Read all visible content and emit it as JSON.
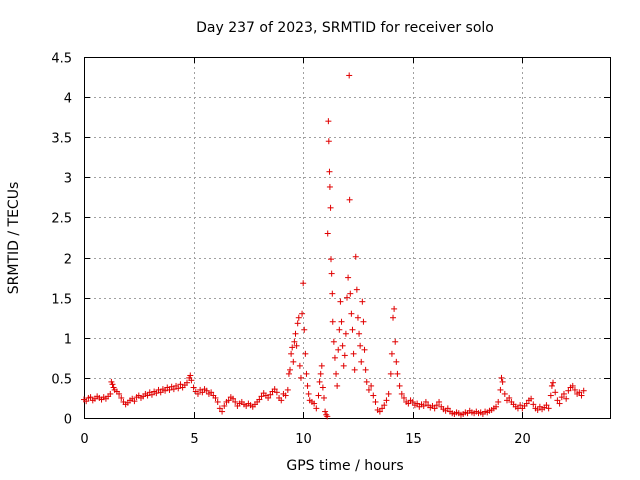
{
  "chart_data": {
    "type": "scatter",
    "title": "Day 237 of 2023, SRMTID for receiver solo",
    "xlabel": "GPS time / hours",
    "ylabel": "SRMTID / TECUs",
    "xlim": [
      0,
      24
    ],
    "ylim": [
      0,
      4.5
    ],
    "xticks": [
      0,
      5,
      10,
      15,
      20
    ],
    "xtick_labels": [
      "0",
      "5",
      "10",
      "15",
      "20"
    ],
    "yticks": [
      0,
      0.5,
      1,
      1.5,
      2,
      2.5,
      3,
      3.5,
      4,
      4.5
    ],
    "ytick_labels": [
      "0",
      "0.5",
      "1",
      "1.5",
      "2",
      "2.5",
      "3",
      "3.5",
      "4",
      "4.5"
    ],
    "grid": true,
    "marker": "+",
    "color": "#e00000",
    "series": [
      {
        "name": "SRMTID",
        "points": [
          [
            0.0,
            0.23
          ],
          [
            0.1,
            0.21
          ],
          [
            0.2,
            0.25
          ],
          [
            0.3,
            0.26
          ],
          [
            0.4,
            0.22
          ],
          [
            0.5,
            0.24
          ],
          [
            0.6,
            0.27
          ],
          [
            0.7,
            0.25
          ],
          [
            0.8,
            0.23
          ],
          [
            0.9,
            0.26
          ],
          [
            1.0,
            0.24
          ],
          [
            1.1,
            0.27
          ],
          [
            1.2,
            0.3
          ],
          [
            1.25,
            0.45
          ],
          [
            1.3,
            0.42
          ],
          [
            1.35,
            0.38
          ],
          [
            1.4,
            0.35
          ],
          [
            1.5,
            0.33
          ],
          [
            1.6,
            0.3
          ],
          [
            1.7,
            0.25
          ],
          [
            1.8,
            0.2
          ],
          [
            1.9,
            0.17
          ],
          [
            2.0,
            0.19
          ],
          [
            2.1,
            0.22
          ],
          [
            2.2,
            0.24
          ],
          [
            2.3,
            0.21
          ],
          [
            2.4,
            0.26
          ],
          [
            2.5,
            0.28
          ],
          [
            2.6,
            0.25
          ],
          [
            2.7,
            0.27
          ],
          [
            2.8,
            0.3
          ],
          [
            2.9,
            0.28
          ],
          [
            3.0,
            0.32
          ],
          [
            3.1,
            0.29
          ],
          [
            3.2,
            0.33
          ],
          [
            3.3,
            0.31
          ],
          [
            3.4,
            0.35
          ],
          [
            3.5,
            0.32
          ],
          [
            3.6,
            0.36
          ],
          [
            3.7,
            0.34
          ],
          [
            3.8,
            0.38
          ],
          [
            3.9,
            0.35
          ],
          [
            4.0,
            0.39
          ],
          [
            4.1,
            0.36
          ],
          [
            4.2,
            0.4
          ],
          [
            4.3,
            0.37
          ],
          [
            4.4,
            0.42
          ],
          [
            4.5,
            0.38
          ],
          [
            4.6,
            0.41
          ],
          [
            4.7,
            0.44
          ],
          [
            4.8,
            0.5
          ],
          [
            4.85,
            0.53
          ],
          [
            4.9,
            0.47
          ],
          [
            5.0,
            0.38
          ],
          [
            5.1,
            0.33
          ],
          [
            5.2,
            0.3
          ],
          [
            5.3,
            0.35
          ],
          [
            5.4,
            0.32
          ],
          [
            5.5,
            0.36
          ],
          [
            5.6,
            0.34
          ],
          [
            5.7,
            0.3
          ],
          [
            5.8,
            0.32
          ],
          [
            5.9,
            0.28
          ],
          [
            6.0,
            0.25
          ],
          [
            6.1,
            0.2
          ],
          [
            6.2,
            0.12
          ],
          [
            6.3,
            0.08
          ],
          [
            6.4,
            0.15
          ],
          [
            6.5,
            0.2
          ],
          [
            6.6,
            0.22
          ],
          [
            6.7,
            0.26
          ],
          [
            6.8,
            0.24
          ],
          [
            6.9,
            0.2
          ],
          [
            7.0,
            0.15
          ],
          [
            7.1,
            0.18
          ],
          [
            7.2,
            0.2
          ],
          [
            7.3,
            0.17
          ],
          [
            7.4,
            0.15
          ],
          [
            7.5,
            0.18
          ],
          [
            7.6,
            0.16
          ],
          [
            7.7,
            0.14
          ],
          [
            7.8,
            0.17
          ],
          [
            7.9,
            0.2
          ],
          [
            8.0,
            0.23
          ],
          [
            8.1,
            0.27
          ],
          [
            8.2,
            0.31
          ],
          [
            8.3,
            0.28
          ],
          [
            8.4,
            0.25
          ],
          [
            8.5,
            0.29
          ],
          [
            8.6,
            0.33
          ],
          [
            8.7,
            0.36
          ],
          [
            8.8,
            0.32
          ],
          [
            8.9,
            0.25
          ],
          [
            9.0,
            0.22
          ],
          [
            9.1,
            0.3
          ],
          [
            9.2,
            0.28
          ],
          [
            9.3,
            0.35
          ],
          [
            9.35,
            0.55
          ],
          [
            9.4,
            0.6
          ],
          [
            9.45,
            0.8
          ],
          [
            9.5,
            0.88
          ],
          [
            9.55,
            0.7
          ],
          [
            9.6,
            0.95
          ],
          [
            9.65,
            1.05
          ],
          [
            9.7,
            0.9
          ],
          [
            9.75,
            1.18
          ],
          [
            9.8,
            1.25
          ],
          [
            9.85,
            0.65
          ],
          [
            9.9,
            0.5
          ],
          [
            9.95,
            1.3
          ],
          [
            10.0,
            1.68
          ],
          [
            10.05,
            1.1
          ],
          [
            10.1,
            0.8
          ],
          [
            10.15,
            0.55
          ],
          [
            10.2,
            0.4
          ],
          [
            10.25,
            0.3
          ],
          [
            10.3,
            0.22
          ],
          [
            10.4,
            0.2
          ],
          [
            10.5,
            0.18
          ],
          [
            10.6,
            0.12
          ],
          [
            10.7,
            0.28
          ],
          [
            10.75,
            0.45
          ],
          [
            10.8,
            0.55
          ],
          [
            10.85,
            0.65
          ],
          [
            10.9,
            0.38
          ],
          [
            10.95,
            0.25
          ],
          [
            11.0,
            0.08
          ],
          [
            11.05,
            0.04
          ],
          [
            11.1,
            0.02
          ],
          [
            11.12,
            2.3
          ],
          [
            11.15,
            3.7
          ],
          [
            11.17,
            3.45
          ],
          [
            11.2,
            3.07
          ],
          [
            11.22,
            2.88
          ],
          [
            11.25,
            2.62
          ],
          [
            11.27,
            1.98
          ],
          [
            11.3,
            1.8
          ],
          [
            11.33,
            1.55
          ],
          [
            11.35,
            1.2
          ],
          [
            11.4,
            0.95
          ],
          [
            11.45,
            0.75
          ],
          [
            11.5,
            0.55
          ],
          [
            11.55,
            0.4
          ],
          [
            11.6,
            0.85
          ],
          [
            11.65,
            1.1
          ],
          [
            11.7,
            1.45
          ],
          [
            11.75,
            1.2
          ],
          [
            11.8,
            0.9
          ],
          [
            11.85,
            0.65
          ],
          [
            11.9,
            0.78
          ],
          [
            11.95,
            1.05
          ],
          [
            12.0,
            1.5
          ],
          [
            12.05,
            1.75
          ],
          [
            12.1,
            4.27
          ],
          [
            12.12,
            2.72
          ],
          [
            12.15,
            1.55
          ],
          [
            12.2,
            1.3
          ],
          [
            12.25,
            1.1
          ],
          [
            12.3,
            0.8
          ],
          [
            12.35,
            0.6
          ],
          [
            12.4,
            2.01
          ],
          [
            12.45,
            1.6
          ],
          [
            12.5,
            1.25
          ],
          [
            12.55,
            1.05
          ],
          [
            12.6,
            0.9
          ],
          [
            12.65,
            0.7
          ],
          [
            12.7,
            1.45
          ],
          [
            12.75,
            1.2
          ],
          [
            12.8,
            0.85
          ],
          [
            12.85,
            0.6
          ],
          [
            12.9,
            0.45
          ],
          [
            13.0,
            0.35
          ],
          [
            13.1,
            0.4
          ],
          [
            13.2,
            0.28
          ],
          [
            13.3,
            0.2
          ],
          [
            13.4,
            0.1
          ],
          [
            13.5,
            0.08
          ],
          [
            13.6,
            0.12
          ],
          [
            13.7,
            0.16
          ],
          [
            13.8,
            0.22
          ],
          [
            13.9,
            0.3
          ],
          [
            14.0,
            0.55
          ],
          [
            14.05,
            0.8
          ],
          [
            14.1,
            1.25
          ],
          [
            14.15,
            1.36
          ],
          [
            14.2,
            0.95
          ],
          [
            14.25,
            0.7
          ],
          [
            14.3,
            0.55
          ],
          [
            14.4,
            0.4
          ],
          [
            14.5,
            0.3
          ],
          [
            14.6,
            0.25
          ],
          [
            14.7,
            0.2
          ],
          [
            14.8,
            0.18
          ],
          [
            14.9,
            0.22
          ],
          [
            15.0,
            0.2
          ],
          [
            15.1,
            0.16
          ],
          [
            15.2,
            0.18
          ],
          [
            15.3,
            0.14
          ],
          [
            15.4,
            0.17
          ],
          [
            15.5,
            0.15
          ],
          [
            15.6,
            0.2
          ],
          [
            15.7,
            0.16
          ],
          [
            15.8,
            0.13
          ],
          [
            15.9,
            0.15
          ],
          [
            16.0,
            0.12
          ],
          [
            16.1,
            0.16
          ],
          [
            16.2,
            0.2
          ],
          [
            16.3,
            0.14
          ],
          [
            16.4,
            0.11
          ],
          [
            16.5,
            0.09
          ],
          [
            16.6,
            0.12
          ],
          [
            16.7,
            0.08
          ],
          [
            16.8,
            0.06
          ],
          [
            16.9,
            0.05
          ],
          [
            17.0,
            0.07
          ],
          [
            17.1,
            0.06
          ],
          [
            17.2,
            0.04
          ],
          [
            17.3,
            0.05
          ],
          [
            17.4,
            0.07
          ],
          [
            17.5,
            0.06
          ],
          [
            17.6,
            0.09
          ],
          [
            17.7,
            0.07
          ],
          [
            17.8,
            0.06
          ],
          [
            17.9,
            0.08
          ],
          [
            18.0,
            0.06
          ],
          [
            18.1,
            0.07
          ],
          [
            18.2,
            0.05
          ],
          [
            18.3,
            0.08
          ],
          [
            18.4,
            0.07
          ],
          [
            18.5,
            0.09
          ],
          [
            18.6,
            0.1
          ],
          [
            18.7,
            0.12
          ],
          [
            18.8,
            0.14
          ],
          [
            18.9,
            0.2
          ],
          [
            19.0,
            0.35
          ],
          [
            19.05,
            0.5
          ],
          [
            19.1,
            0.45
          ],
          [
            19.2,
            0.3
          ],
          [
            19.3,
            0.22
          ],
          [
            19.4,
            0.25
          ],
          [
            19.5,
            0.2
          ],
          [
            19.6,
            0.17
          ],
          [
            19.7,
            0.14
          ],
          [
            19.8,
            0.12
          ],
          [
            19.9,
            0.16
          ],
          [
            20.0,
            0.12
          ],
          [
            20.1,
            0.15
          ],
          [
            20.2,
            0.18
          ],
          [
            20.3,
            0.22
          ],
          [
            20.4,
            0.24
          ],
          [
            20.5,
            0.17
          ],
          [
            20.6,
            0.12
          ],
          [
            20.7,
            0.1
          ],
          [
            20.8,
            0.14
          ],
          [
            20.9,
            0.11
          ],
          [
            21.0,
            0.13
          ],
          [
            21.1,
            0.16
          ],
          [
            21.2,
            0.12
          ],
          [
            21.3,
            0.28
          ],
          [
            21.35,
            0.4
          ],
          [
            21.4,
            0.44
          ],
          [
            21.5,
            0.32
          ],
          [
            21.6,
            0.22
          ],
          [
            21.7,
            0.18
          ],
          [
            21.8,
            0.26
          ],
          [
            21.9,
            0.3
          ],
          [
            22.0,
            0.24
          ],
          [
            22.1,
            0.34
          ],
          [
            22.2,
            0.38
          ],
          [
            22.3,
            0.4
          ],
          [
            22.4,
            0.35
          ],
          [
            22.5,
            0.3
          ],
          [
            22.6,
            0.32
          ],
          [
            22.7,
            0.28
          ],
          [
            22.8,
            0.34
          ]
        ]
      }
    ]
  }
}
